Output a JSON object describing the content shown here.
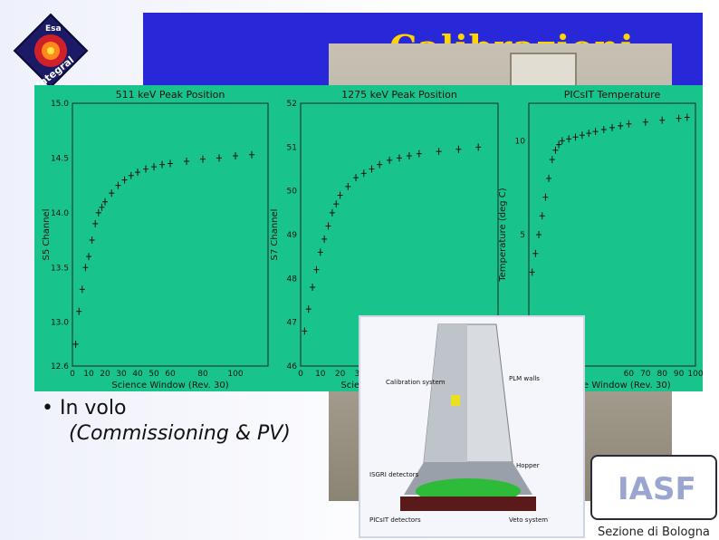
{
  "logo": {
    "top_text": "Esa",
    "ring_text": "Integral",
    "icon": "integral-logo-icon"
  },
  "slide": {
    "title": "Calibrazioni",
    "bullet_main": "In volo",
    "bullet_sub": "(Commissioning & PV)",
    "footer": "Sezione di Bologna",
    "inaf_logo_text": "IASF"
  },
  "colors": {
    "title_bar": "#2828d8",
    "title_text": "#ffd400",
    "plot_bg": "#19c48c"
  },
  "diagram": {
    "labels": [
      "Calibration system",
      "PICsIT detectors",
      "ISGRI detectors",
      "PLM walls",
      "Hopper",
      "Veto system"
    ]
  },
  "chart_data": [
    {
      "type": "scatter",
      "title": "511 keV Peak Position",
      "xlabel": "Science Window (Rev. 30)",
      "ylabel": "S5 Channel",
      "xlim": [
        0,
        120
      ],
      "ylim": [
        12.6,
        15.0
      ],
      "xticks": [
        "0",
        "10",
        "20",
        "30",
        "40",
        "50",
        "60",
        "80",
        "100"
      ],
      "yticks": [
        "12.6",
        "13.0",
        "13.5",
        "14.0",
        "14.5",
        "15.0"
      ],
      "x": [
        2,
        4,
        6,
        8,
        10,
        12,
        14,
        16,
        18,
        20,
        24,
        28,
        32,
        36,
        40,
        45,
        50,
        55,
        60,
        70,
        80,
        90,
        100,
        110
      ],
      "y": [
        12.8,
        13.1,
        13.3,
        13.5,
        13.6,
        13.75,
        13.9,
        14.0,
        14.05,
        14.1,
        14.18,
        14.25,
        14.3,
        14.34,
        14.37,
        14.4,
        14.42,
        14.44,
        14.45,
        14.47,
        14.49,
        14.5,
        14.52,
        14.53
      ]
    },
    {
      "type": "scatter",
      "title": "1275 keV Peak Position",
      "xlabel": "Science Window (Rev. 30)",
      "ylabel": "S7 Channel",
      "xlim": [
        0,
        100
      ],
      "ylim": [
        46,
        52
      ],
      "xticks": [
        "0",
        "10",
        "20",
        "30"
      ],
      "yticks": [
        "46",
        "47",
        "48",
        "49",
        "50",
        "51",
        "52"
      ],
      "x": [
        2,
        4,
        6,
        8,
        10,
        12,
        14,
        16,
        18,
        20,
        24,
        28,
        32,
        36,
        40,
        45,
        50,
        55,
        60,
        70,
        80,
        90
      ],
      "y": [
        46.8,
        47.3,
        47.8,
        48.2,
        48.6,
        48.9,
        49.2,
        49.5,
        49.7,
        49.9,
        50.1,
        50.3,
        50.4,
        50.5,
        50.6,
        50.7,
        50.75,
        50.8,
        50.85,
        50.9,
        50.95,
        51.0
      ]
    },
    {
      "type": "scatter",
      "title": "PICsIT Temperature",
      "xlabel": "Science Window (Rev. 30)",
      "ylabel": "Temperature (deg C)",
      "xlim": [
        0,
        100
      ],
      "ylim": [
        -2,
        12
      ],
      "xticks": [
        "60",
        "70",
        "80",
        "90",
        "100"
      ],
      "yticks": [
        "0",
        "5",
        "10"
      ],
      "x": [
        2,
        4,
        6,
        8,
        10,
        12,
        14,
        16,
        18,
        20,
        24,
        28,
        32,
        36,
        40,
        45,
        50,
        55,
        60,
        70,
        80,
        90,
        95
      ],
      "y": [
        3.0,
        4.0,
        5.0,
        6.0,
        7.0,
        8.0,
        9.0,
        9.5,
        9.8,
        10.0,
        10.1,
        10.2,
        10.3,
        10.4,
        10.5,
        10.6,
        10.7,
        10.8,
        10.9,
        11.0,
        11.1,
        11.2,
        11.25
      ]
    }
  ]
}
